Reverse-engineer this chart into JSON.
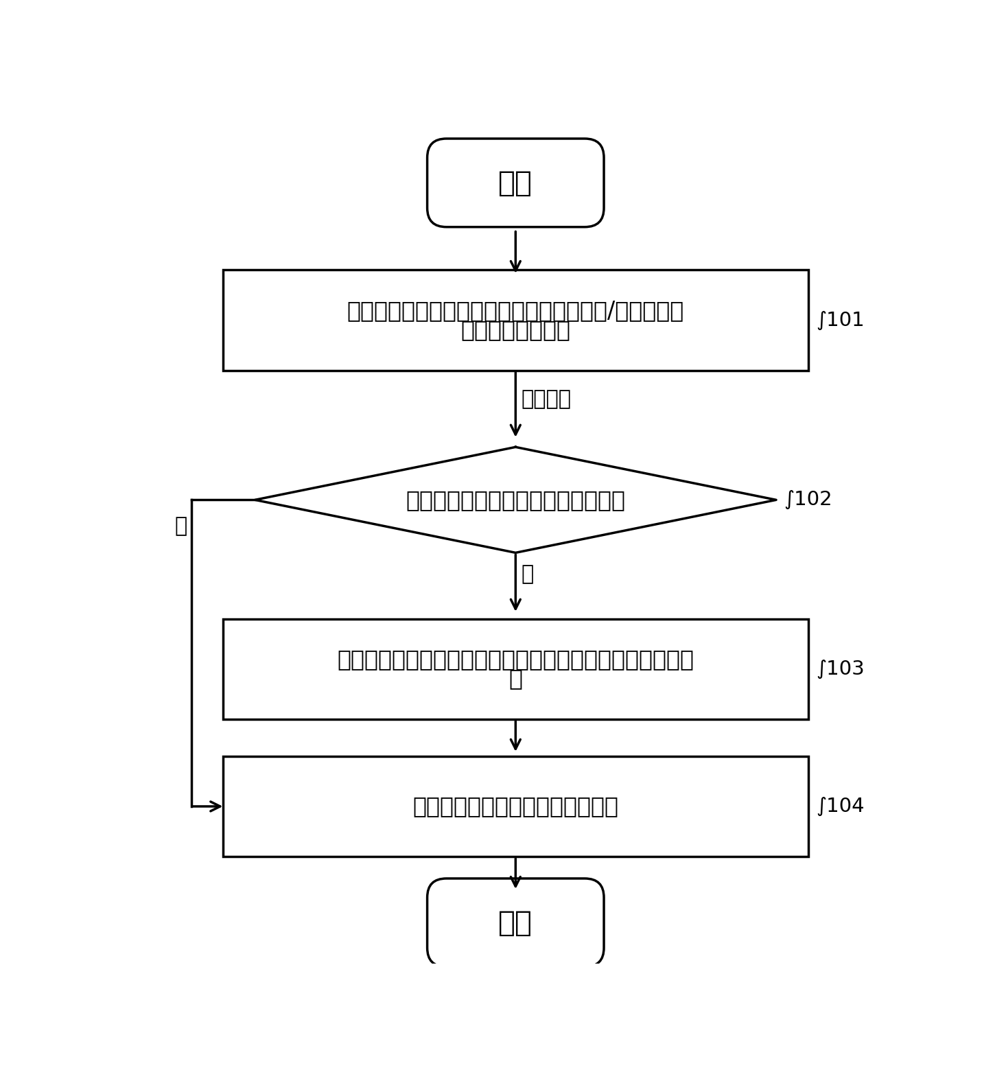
{
  "bg_color": "#ffffff",
  "line_color": "#000000",
  "text_color": "#000000",
  "start_text": "开始",
  "end_text": "结束",
  "box1_line1": "基于业务触发，对读写分区中的文件执行读/写操作失败",
  "box1_line2": "后，重新创建文件",
  "box1_ref": "101",
  "diamond_text": "嵌入式设备是否已经历过重启操作？",
  "diamond_ref": "102",
  "arrow_label_fail": "创建失败",
  "arrow_label_yes": "是",
  "arrow_label_no": "否",
  "box2_line1": "重新挂载格式化后的读写分区，并对读写分区中的数据初始",
  "box2_line2": "化",
  "box2_ref": "103",
  "box3_text": "执行对嵌入式文件系统的重启操作",
  "box3_ref": "104",
  "figw": 14.66,
  "figh": 15.78,
  "dpi": 100
}
